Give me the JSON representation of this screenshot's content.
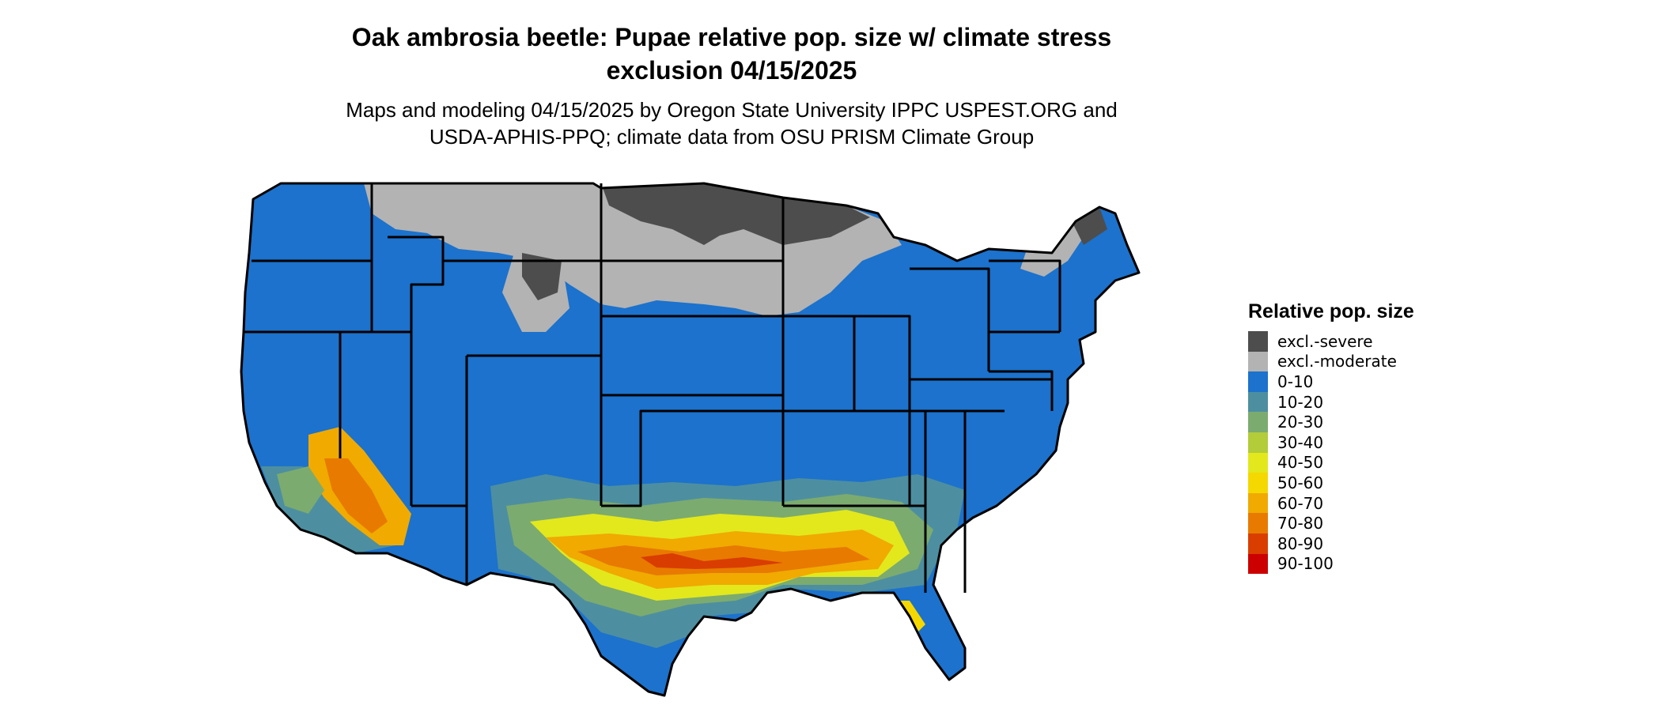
{
  "title_line1": "Oak ambrosia beetle: Pupae relative pop. size w/ climate stress",
  "title_line2": "exclusion 04/15/2025",
  "subtitle_line1": "Maps and modeling 04/15/2025 by Oregon State University IPPC USPEST.ORG and",
  "subtitle_line2": "USDA-APHIS-PPQ; climate data from OSU PRISM Climate Group",
  "legend": {
    "title": "Relative pop. size",
    "items": [
      {
        "label": "excl.-severe",
        "color": "#4d4d4d"
      },
      {
        "label": "excl.-moderate",
        "color": "#b3b3b3"
      },
      {
        "label": "0-10",
        "color": "#1c72cc"
      },
      {
        "label": "10-20",
        "color": "#4d8fa0"
      },
      {
        "label": "20-30",
        "color": "#7cab6f"
      },
      {
        "label": "30-40",
        "color": "#b2cc3a"
      },
      {
        "label": "40-50",
        "color": "#e2e81c"
      },
      {
        "label": "50-60",
        "color": "#f5d800"
      },
      {
        "label": "60-70",
        "color": "#f0aa00"
      },
      {
        "label": "70-80",
        "color": "#e87a00"
      },
      {
        "label": "80-90",
        "color": "#d93d00"
      },
      {
        "label": "90-100",
        "color": "#cc0000"
      }
    ]
  }
}
